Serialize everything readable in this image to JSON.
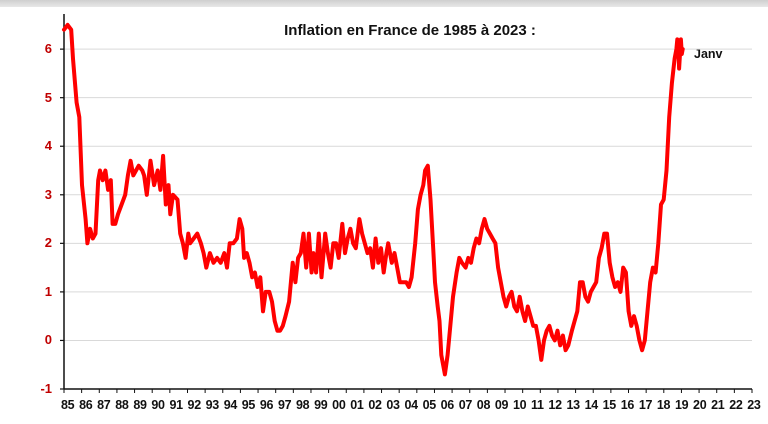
{
  "chart_data": {
    "type": "line",
    "title": "Inflation en France de 1985 à 2023 :",
    "annotation": "Janv",
    "xlabel": "",
    "ylabel": "",
    "ylim": [
      -1,
      6.6
    ],
    "yticks": [
      -1,
      0,
      1,
      2,
      3,
      4,
      5,
      6
    ],
    "xlim": [
      1985.0,
      2023.2
    ],
    "x_tick_labels": [
      "85",
      "86",
      "87",
      "88",
      "89",
      "90",
      "91",
      "92",
      "93",
      "94",
      "95",
      "96",
      "97",
      "98",
      "99",
      "00",
      "01",
      "02",
      "03",
      "04",
      "05",
      "06",
      "07",
      "08",
      "09",
      "10",
      "11",
      "12",
      "13",
      "14",
      "15",
      "16",
      "17",
      "18",
      "19",
      "20",
      "21",
      "22",
      "23"
    ],
    "grid": "horizontal",
    "line_color": "#ff0000",
    "series": [
      {
        "color": "#ff0000",
        "points": [
          [
            1985.0,
            6.4
          ],
          [
            1985.2,
            6.5
          ],
          [
            1985.4,
            6.4
          ],
          [
            1985.5,
            5.8
          ],
          [
            1985.7,
            4.9
          ],
          [
            1985.85,
            4.6
          ],
          [
            1986.0,
            3.2
          ],
          [
            1986.2,
            2.5
          ],
          [
            1986.3,
            2.0
          ],
          [
            1986.45,
            2.3
          ],
          [
            1986.6,
            2.1
          ],
          [
            1986.75,
            2.2
          ],
          [
            1986.9,
            3.3
          ],
          [
            1987.0,
            3.5
          ],
          [
            1987.15,
            3.3
          ],
          [
            1987.3,
            3.5
          ],
          [
            1987.45,
            3.1
          ],
          [
            1987.6,
            3.3
          ],
          [
            1987.7,
            2.4
          ],
          [
            1987.85,
            2.4
          ],
          [
            1988.0,
            2.6
          ],
          [
            1988.2,
            2.8
          ],
          [
            1988.4,
            3.0
          ],
          [
            1988.55,
            3.4
          ],
          [
            1988.7,
            3.7
          ],
          [
            1988.85,
            3.4
          ],
          [
            1989.0,
            3.5
          ],
          [
            1989.15,
            3.6
          ],
          [
            1989.35,
            3.5
          ],
          [
            1989.45,
            3.4
          ],
          [
            1989.6,
            3.0
          ],
          [
            1989.8,
            3.7
          ],
          [
            1990.0,
            3.2
          ],
          [
            1990.2,
            3.5
          ],
          [
            1990.35,
            3.1
          ],
          [
            1990.5,
            3.8
          ],
          [
            1990.65,
            2.8
          ],
          [
            1990.8,
            3.2
          ],
          [
            1990.9,
            2.6
          ],
          [
            1991.05,
            3.0
          ],
          [
            1991.3,
            2.9
          ],
          [
            1991.45,
            2.2
          ],
          [
            1991.6,
            2.0
          ],
          [
            1991.75,
            1.7
          ],
          [
            1991.9,
            2.2
          ],
          [
            1992.0,
            2.0
          ],
          [
            1992.2,
            2.1
          ],
          [
            1992.4,
            2.2
          ],
          [
            1992.6,
            2.0
          ],
          [
            1992.75,
            1.8
          ],
          [
            1992.9,
            1.5
          ],
          [
            1993.1,
            1.8
          ],
          [
            1993.3,
            1.6
          ],
          [
            1993.5,
            1.7
          ],
          [
            1993.7,
            1.6
          ],
          [
            1993.9,
            1.8
          ],
          [
            1994.05,
            1.5
          ],
          [
            1994.2,
            2.0
          ],
          [
            1994.4,
            2.0
          ],
          [
            1994.6,
            2.1
          ],
          [
            1994.75,
            2.5
          ],
          [
            1994.9,
            2.3
          ],
          [
            1995.0,
            1.7
          ],
          [
            1995.15,
            1.8
          ],
          [
            1995.3,
            1.6
          ],
          [
            1995.45,
            1.3
          ],
          [
            1995.6,
            1.4
          ],
          [
            1995.75,
            1.1
          ],
          [
            1995.9,
            1.3
          ],
          [
            1996.05,
            0.6
          ],
          [
            1996.2,
            1.0
          ],
          [
            1996.4,
            1.0
          ],
          [
            1996.55,
            0.8
          ],
          [
            1996.7,
            0.4
          ],
          [
            1996.85,
            0.2
          ],
          [
            1997.0,
            0.2
          ],
          [
            1997.15,
            0.3
          ],
          [
            1997.3,
            0.5
          ],
          [
            1997.5,
            0.8
          ],
          [
            1997.6,
            1.2
          ],
          [
            1997.7,
            1.6
          ],
          [
            1997.85,
            1.2
          ],
          [
            1998.0,
            1.7
          ],
          [
            1998.15,
            1.8
          ],
          [
            1998.3,
            2.2
          ],
          [
            1998.45,
            1.5
          ],
          [
            1998.6,
            2.2
          ],
          [
            1998.75,
            1.4
          ],
          [
            1998.85,
            1.8
          ],
          [
            1999.0,
            1.4
          ],
          [
            1999.15,
            2.2
          ],
          [
            1999.3,
            1.3
          ],
          [
            1999.5,
            2.2
          ],
          [
            1999.65,
            1.8
          ],
          [
            1999.8,
            1.5
          ],
          [
            1999.95,
            2.0
          ],
          [
            2000.1,
            2.0
          ],
          [
            2000.25,
            1.7
          ],
          [
            2000.45,
            2.4
          ],
          [
            2000.6,
            1.8
          ],
          [
            2000.75,
            2.1
          ],
          [
            2000.9,
            2.3
          ],
          [
            2001.05,
            2.0
          ],
          [
            2001.2,
            1.9
          ],
          [
            2001.4,
            2.5
          ],
          [
            2001.55,
            2.2
          ],
          [
            2001.7,
            2.0
          ],
          [
            2001.85,
            1.8
          ],
          [
            2002.0,
            1.9
          ],
          [
            2002.15,
            1.5
          ],
          [
            2002.3,
            2.1
          ],
          [
            2002.45,
            1.6
          ],
          [
            2002.6,
            1.9
          ],
          [
            2002.75,
            1.4
          ],
          [
            2002.9,
            1.8
          ],
          [
            2003.0,
            2.0
          ],
          [
            2003.2,
            1.6
          ],
          [
            2003.35,
            1.8
          ],
          [
            2003.5,
            1.5
          ],
          [
            2003.65,
            1.2
          ],
          [
            2003.75,
            1.2
          ],
          [
            2003.9,
            1.2
          ],
          [
            2004.0,
            1.2
          ],
          [
            2004.15,
            1.1
          ],
          [
            2004.3,
            1.3
          ],
          [
            2004.5,
            2.0
          ],
          [
            2004.65,
            2.7
          ],
          [
            2004.8,
            3.0
          ],
          [
            2004.95,
            3.2
          ],
          [
            2005.05,
            3.5
          ],
          [
            2005.2,
            3.6
          ],
          [
            2005.35,
            2.9
          ],
          [
            2005.5,
            1.9
          ],
          [
            2005.6,
            1.2
          ],
          [
            2005.75,
            0.7
          ],
          [
            2005.85,
            0.4
          ],
          [
            2005.95,
            -0.3
          ],
          [
            2006.05,
            -0.5
          ],
          [
            2006.15,
            -0.7
          ],
          [
            2006.3,
            -0.3
          ],
          [
            2006.45,
            0.3
          ],
          [
            2006.6,
            0.9
          ],
          [
            2006.8,
            1.4
          ],
          [
            2006.95,
            1.7
          ],
          [
            2007.1,
            1.6
          ],
          [
            2007.3,
            1.5
          ],
          [
            2007.45,
            1.7
          ],
          [
            2007.6,
            1.6
          ],
          [
            2007.75,
            1.9
          ],
          [
            2007.9,
            2.1
          ],
          [
            2008.05,
            2.0
          ],
          [
            2008.2,
            2.3
          ],
          [
            2008.35,
            2.5
          ],
          [
            2008.5,
            2.3
          ],
          [
            2008.65,
            2.2
          ],
          [
            2008.8,
            2.1
          ],
          [
            2008.95,
            2.0
          ],
          [
            2009.1,
            1.5
          ],
          [
            2009.25,
            1.2
          ],
          [
            2009.4,
            0.9
          ],
          [
            2009.55,
            0.7
          ],
          [
            2009.7,
            0.9
          ],
          [
            2009.85,
            1.0
          ],
          [
            2010.0,
            0.7
          ],
          [
            2010.15,
            0.6
          ],
          [
            2010.3,
            0.9
          ],
          [
            2010.45,
            0.6
          ],
          [
            2010.6,
            0.4
          ],
          [
            2010.75,
            0.7
          ],
          [
            2010.9,
            0.5
          ],
          [
            2011.05,
            0.3
          ],
          [
            2011.2,
            0.3
          ],
          [
            2011.35,
            0.0
          ],
          [
            2011.5,
            -0.4
          ],
          [
            2011.65,
            0.0
          ],
          [
            2011.8,
            0.2
          ],
          [
            2011.95,
            0.3
          ],
          [
            2012.1,
            0.1
          ],
          [
            2012.25,
            0.0
          ],
          [
            2012.4,
            0.2
          ],
          [
            2012.55,
            -0.1
          ],
          [
            2012.7,
            0.1
          ],
          [
            2012.85,
            -0.2
          ],
          [
            2013.0,
            -0.1
          ],
          [
            2013.2,
            0.2
          ],
          [
            2013.35,
            0.4
          ],
          [
            2013.5,
            0.6
          ],
          [
            2013.65,
            1.2
          ],
          [
            2013.8,
            1.2
          ],
          [
            2013.95,
            0.9
          ],
          [
            2014.1,
            0.8
          ],
          [
            2014.25,
            1.0
          ],
          [
            2014.4,
            1.1
          ],
          [
            2014.55,
            1.2
          ],
          [
            2014.7,
            1.7
          ],
          [
            2014.85,
            1.9
          ],
          [
            2015.0,
            2.2
          ],
          [
            2015.15,
            2.2
          ],
          [
            2015.3,
            1.6
          ],
          [
            2015.45,
            1.3
          ],
          [
            2015.6,
            1.1
          ],
          [
            2015.75,
            1.2
          ],
          [
            2015.9,
            1.0
          ],
          [
            2016.05,
            1.5
          ],
          [
            2016.2,
            1.4
          ],
          [
            2016.35,
            0.6
          ],
          [
            2016.5,
            0.3
          ],
          [
            2016.65,
            0.5
          ],
          [
            2016.8,
            0.3
          ],
          [
            2016.95,
            0.0
          ],
          [
            2017.1,
            -0.2
          ],
          [
            2017.25,
            0.0
          ],
          [
            2017.4,
            0.6
          ],
          [
            2017.55,
            1.2
          ],
          [
            2017.7,
            1.5
          ],
          [
            2017.85,
            1.4
          ],
          [
            2018.0,
            2.0
          ],
          [
            2018.15,
            2.8
          ],
          [
            2018.3,
            2.9
          ],
          [
            2018.45,
            3.5
          ],
          [
            2018.6,
            4.6
          ],
          [
            2018.75,
            5.3
          ],
          [
            2018.9,
            5.8
          ],
          [
            2019.0,
            6.0
          ],
          [
            2019.05,
            6.2
          ],
          [
            2019.1,
            6.1
          ],
          [
            2019.15,
            5.6
          ],
          [
            2019.2,
            5.9
          ],
          [
            2019.25,
            6.2
          ],
          [
            2019.3,
            5.9
          ],
          [
            2019.35,
            6.0
          ]
        ]
      }
    ]
  }
}
